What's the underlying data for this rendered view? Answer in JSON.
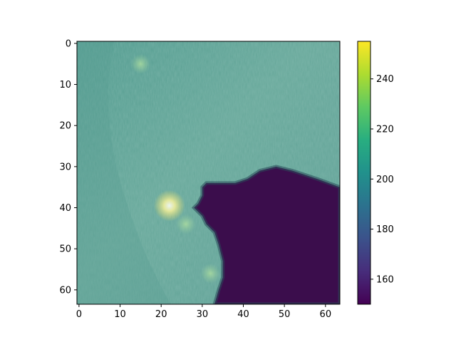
{
  "chart_data": {
    "type": "heatmap",
    "title": "",
    "xlabel": "",
    "ylabel": "",
    "image_shape": [
      64,
      64
    ],
    "xlim": [
      -0.5,
      63.5
    ],
    "ylim": [
      63.5,
      -0.5
    ],
    "x_ticks": [
      0,
      10,
      20,
      30,
      40,
      50,
      60
    ],
    "y_ticks": [
      0,
      10,
      20,
      30,
      40,
      50,
      60
    ],
    "x_tick_labels": [
      "0",
      "10",
      "20",
      "30",
      "40",
      "50",
      "60"
    ],
    "y_tick_labels": [
      "0",
      "10",
      "20",
      "30",
      "40",
      "50",
      "60"
    ],
    "colormap": "viridis",
    "colorbar": {
      "vmin": 150,
      "vmax": 255,
      "ticks": [
        160,
        180,
        200,
        220,
        240
      ],
      "tick_labels": [
        "160",
        "180",
        "200",
        "220",
        "240"
      ]
    },
    "regions": {
      "background_value": 212,
      "dark_region": {
        "value": 152,
        "boundary": [
          [
            63.5,
            35
          ],
          [
            58,
            33
          ],
          [
            52,
            31
          ],
          [
            48,
            30
          ],
          [
            44,
            31
          ],
          [
            41,
            33
          ],
          [
            38,
            34
          ],
          [
            34,
            34
          ],
          [
            31,
            34
          ],
          [
            30,
            35
          ],
          [
            30,
            37
          ],
          [
            29,
            39
          ],
          [
            28,
            40
          ],
          [
            30,
            42
          ],
          [
            31,
            44
          ],
          [
            33,
            46
          ],
          [
            34,
            49
          ],
          [
            35,
            53
          ],
          [
            35,
            57
          ],
          [
            34,
            60
          ],
          [
            33,
            63.5
          ],
          [
            63.5,
            63.5
          ]
        ]
      },
      "bright_spots": [
        {
          "x": 22,
          "y": 39.5,
          "value": 252
        },
        {
          "x": 26,
          "y": 44,
          "value": 230
        },
        {
          "x": 32,
          "y": 56,
          "value": 226
        },
        {
          "x": 15,
          "y": 5,
          "value": 222
        }
      ]
    }
  }
}
